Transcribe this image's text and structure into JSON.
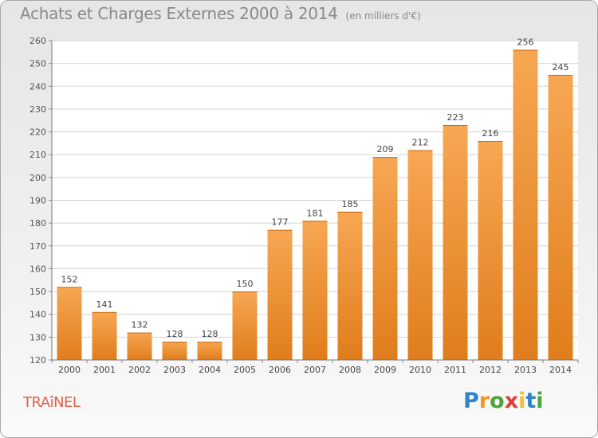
{
  "header": {
    "title": "Achats et Charges Externes 2000 à 2014",
    "unit": "(en milliers d'€)"
  },
  "commune": "TRAîNEL",
  "logo": {
    "text": "Proxiti",
    "letters": [
      {
        "char": "P",
        "color": "#2f83c6"
      },
      {
        "char": "r",
        "color": "#f29a24"
      },
      {
        "char": "o",
        "color": "#4aa63c"
      },
      {
        "char": "x",
        "color": "#e23b3b"
      },
      {
        "char": "i",
        "color": "#f2c12e"
      },
      {
        "char": "t",
        "color": "#2f83c6"
      },
      {
        "char": "i",
        "color": "#4aa63c"
      }
    ]
  },
  "chart_data": {
    "type": "bar",
    "title": "Achats et Charges Externes 2000 à 2014",
    "subtitle": "(en milliers d'€)",
    "xlabel": "",
    "ylabel": "",
    "categories": [
      "2000",
      "2001",
      "2002",
      "2003",
      "2004",
      "2005",
      "2006",
      "2007",
      "2008",
      "2009",
      "2010",
      "2011",
      "2012",
      "2013",
      "2014"
    ],
    "values": [
      152,
      141,
      132,
      128,
      128,
      150,
      177,
      181,
      185,
      209,
      212,
      223,
      216,
      256,
      245
    ],
    "ylim": [
      120,
      260
    ],
    "yticks": [
      120,
      130,
      140,
      150,
      160,
      170,
      180,
      190,
      200,
      210,
      220,
      230,
      240,
      250,
      260
    ],
    "grid": true,
    "data_labels": true,
    "colors": {
      "bar_top": "#f7a753",
      "bar_bottom": "#e07d1c",
      "plot_bg": "#ffffff"
    }
  }
}
